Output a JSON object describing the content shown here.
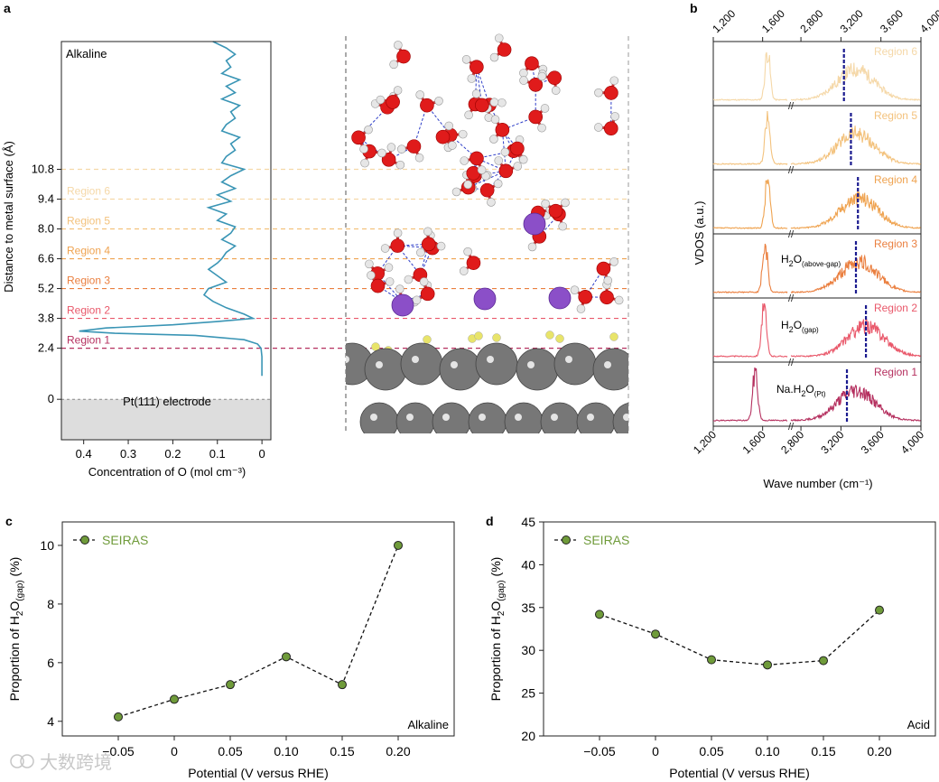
{
  "colors": {
    "profile": "#3a95b5",
    "sim_marker": "#6f9b3a",
    "region": [
      "#b5305f",
      "#e9586a",
      "#ea7f3f",
      "#efa350",
      "#f3c27d",
      "#f5d8a8"
    ],
    "region_text": [
      "#b5305f",
      "#e9586a",
      "#ea7f3f",
      "#efa350",
      "#f3c27d",
      "#f5d8a8"
    ],
    "dashline": "#1b1b8f",
    "electrode_fill": "#dddddd",
    "oxygen": "#e01b1b",
    "hydrogen": "#e6e6e6",
    "sodium": "#8b4fc8",
    "platinum": "#777777",
    "small_atom": "#e8e46a",
    "hbond": "#2f3fc8"
  },
  "chart_data": [
    {
      "id": "a",
      "type": "line",
      "panel_label": "a",
      "title": "Alkaline",
      "xlabel": "Concentration of O (mol cm⁻³)",
      "ylabel": "Distance to metal surface (Å)",
      "xlim": [
        0.45,
        -0.02
      ],
      "ylim": [
        -1.9,
        16.8
      ],
      "xticks": [
        0.4,
        0.3,
        0.2,
        0.1,
        0
      ],
      "xtick_labels": [
        "0.4",
        "0.3",
        "0.2",
        "0.1",
        "0"
      ],
      "yticks": [
        0,
        2.4,
        3.8,
        5.2,
        6.6,
        8.0,
        9.4,
        10.8
      ],
      "ytick_labels": [
        "0",
        "2.4",
        "3.8",
        "5.2",
        "6.6",
        "8.0",
        "9.4",
        "10.8"
      ],
      "electrode_label": "Pt(111) electrode",
      "region_bounds": [
        2.4,
        3.8,
        5.2,
        6.6,
        8.0,
        9.4,
        10.8
      ],
      "regions": [
        "Region 1",
        "Region 2",
        "Region 3",
        "Region 4",
        "Region 5",
        "Region 6"
      ],
      "profile": {
        "y": [
          1.1,
          1.5,
          2.0,
          2.4,
          2.6,
          2.8,
          3.0,
          3.1,
          3.2,
          3.35,
          3.5,
          3.65,
          3.8,
          4.0,
          4.3,
          4.6,
          4.9,
          5.2,
          5.5,
          5.8,
          6.1,
          6.4,
          6.6,
          6.9,
          7.2,
          7.5,
          7.8,
          8.1,
          8.4,
          8.7,
          9.0,
          9.3,
          9.6,
          9.9,
          10.2,
          10.5,
          10.8,
          11.1,
          11.4,
          11.7,
          12.0,
          12.3,
          12.6,
          12.9,
          13.2,
          13.5,
          13.8,
          14.1,
          14.4,
          14.7,
          15.0,
          15.3,
          15.6,
          15.9,
          16.2,
          16.5,
          16.8
        ],
        "x": [
          0.0,
          0.0,
          0.0,
          0.002,
          0.01,
          0.04,
          0.15,
          0.33,
          0.41,
          0.35,
          0.2,
          0.1,
          0.02,
          0.04,
          0.08,
          0.11,
          0.13,
          0.12,
          0.08,
          0.1,
          0.12,
          0.1,
          0.09,
          0.08,
          0.06,
          0.09,
          0.07,
          0.06,
          0.1,
          0.08,
          0.12,
          0.07,
          0.1,
          0.06,
          0.09,
          0.07,
          0.04,
          0.09,
          0.08,
          0.06,
          0.07,
          0.05,
          0.09,
          0.08,
          0.06,
          0.07,
          0.05,
          0.09,
          0.06,
          0.08,
          0.05,
          0.09,
          0.07,
          0.08,
          0.06,
          0.08,
          0.11
        ]
      }
    },
    {
      "id": "b",
      "type": "line",
      "panel_label": "b",
      "xlabel": "Wave number (cm⁻¹)",
      "ylabel": "VDOS (a.u.)",
      "xtick_labels": [
        "1,200",
        "1,600",
        "2,800",
        "3,200",
        "3,600",
        "4,000"
      ],
      "break_between": [
        "1,600",
        "2,800"
      ],
      "panels": [
        {
          "region": "Region 6",
          "peak1": 1640,
          "peak2": 3350,
          "dash": 3230
        },
        {
          "region": "Region 5",
          "peak1": 1640,
          "peak2": 3350,
          "dash": 3300
        },
        {
          "region": "Region 4",
          "peak1": 1640,
          "peak2": 3380,
          "dash": 3370
        },
        {
          "region": "Region 3",
          "peak1": 1620,
          "peak2": 3380,
          "dash": 3350,
          "annotation_main": "H",
          "annotation_sub1": "2",
          "annotation_mid": "O",
          "annotation_sub2": "(above-gap)"
        },
        {
          "region": "Region 2",
          "peak1": 1610,
          "peak2": 3450,
          "dash": 3450,
          "annotation_main": "H",
          "annotation_sub1": "2",
          "annotation_mid": "O",
          "annotation_sub2": "(gap)"
        },
        {
          "region": "Region 1",
          "peak1": 1540,
          "peak2": 3350,
          "dash": 3260,
          "annotation_main": "Na.H",
          "annotation_sub1": "2",
          "annotation_mid": "O",
          "annotation_sub2": "(Pt)"
        }
      ]
    },
    {
      "id": "c",
      "type": "line",
      "panel_label": "c",
      "legend": "SEIRAS",
      "corner_label": "Alkaline",
      "xlabel": "Potential (V versus RHE)",
      "ylabel_main": "Proportion of H",
      "ylabel_sub1": "2",
      "ylabel_mid": "O",
      "ylabel_sub2": "(gap)",
      "ylabel_end": " (%)",
      "x": [
        -0.05,
        0,
        0.05,
        0.1,
        0.15,
        0.2
      ],
      "values": [
        4.15,
        4.75,
        5.25,
        6.2,
        5.25,
        10.0
      ],
      "xtick_labels": [
        "−0.05",
        "0",
        "0.05",
        "0.10",
        "0.15",
        "0.20"
      ],
      "ytick_values": [
        4,
        6,
        8,
        10
      ],
      "ytick_labels": [
        "4",
        "6",
        "8",
        "10"
      ],
      "ylim": [
        3.5,
        10.8
      ]
    },
    {
      "id": "d",
      "type": "line",
      "panel_label": "d",
      "legend": "SEIRAS",
      "corner_label": "Acid",
      "xlabel": "Potential (V versus RHE)",
      "ylabel_main": "Proportion of H",
      "ylabel_sub1": "2",
      "ylabel_mid": "O",
      "ylabel_sub2": "(gap)",
      "ylabel_end": " (%)",
      "x": [
        -0.05,
        0,
        0.05,
        0.1,
        0.15,
        0.2
      ],
      "values": [
        34.2,
        31.9,
        28.9,
        28.3,
        28.8,
        34.7
      ],
      "xtick_labels": [
        "−0.05",
        "0",
        "0.05",
        "0.10",
        "0.15",
        "0.20"
      ],
      "ytick_values": [
        20,
        25,
        30,
        35,
        40,
        45
      ],
      "ytick_labels": [
        "20",
        "25",
        "30",
        "35",
        "40",
        "45"
      ],
      "ylim": [
        20,
        45
      ]
    }
  ],
  "watermark_text": "大数跨境"
}
